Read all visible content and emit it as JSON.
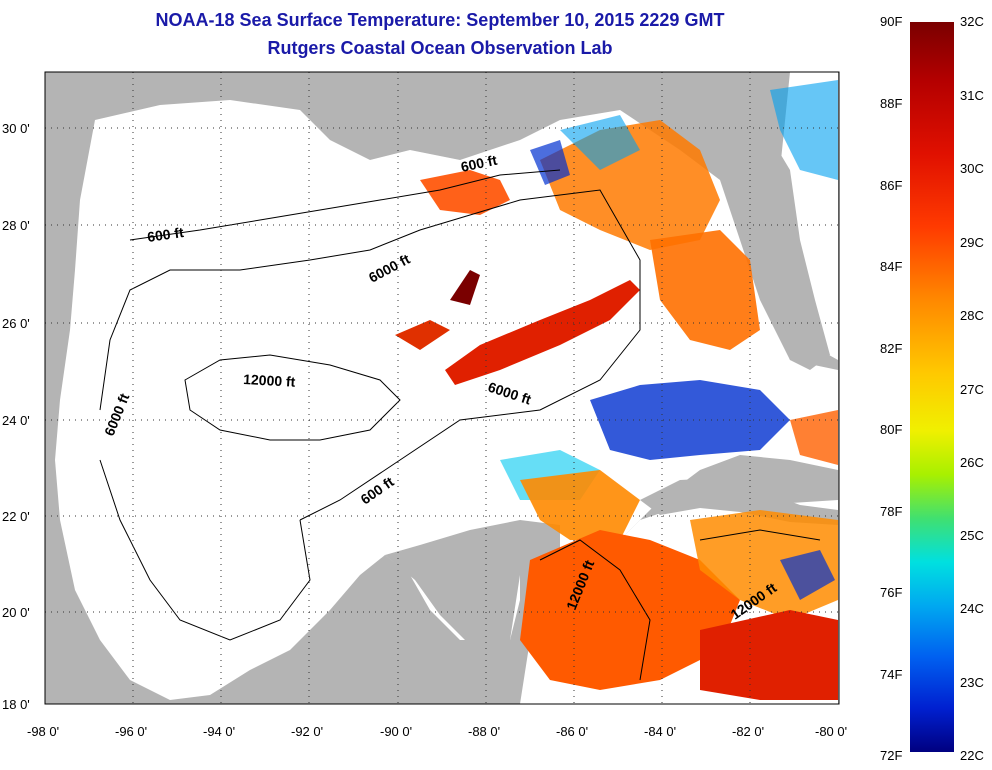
{
  "title": {
    "line1": "NOAA-18 Sea Surface Temperature:  September 10, 2015 2229 GMT",
    "line2": "Rutgers Coastal Ocean Observation Lab"
  },
  "axes": {
    "lon_labels": [
      "-98 0'",
      "-96 0'",
      "-94 0'",
      "-92 0'",
      "-90 0'",
      "-88 0'",
      "-86 0'",
      "-84 0'",
      "-82 0'",
      "-80 0'"
    ],
    "lat_labels": [
      "30 0'",
      "28 0'",
      "26 0'",
      "24 0'",
      "22 0'",
      "20 0'",
      "18 0'"
    ],
    "lon_range": [
      -98,
      -80
    ],
    "lat_range": [
      18,
      31
    ]
  },
  "contour_labels": [
    {
      "text": "600 ft"
    },
    {
      "text": "600 ft"
    },
    {
      "text": "6000 ft"
    },
    {
      "text": "6000 ft"
    },
    {
      "text": "6000 ft"
    },
    {
      "text": "12000 ft"
    },
    {
      "text": "600 ft"
    },
    {
      "text": "12000 ft"
    },
    {
      "text": "12000 ft"
    }
  ],
  "colorbar": {
    "fahrenheit": [
      "90F",
      "88F",
      "86F",
      "84F",
      "82F",
      "80F",
      "78F",
      "76F",
      "74F",
      "72F"
    ],
    "celsius": [
      "32C",
      "31C",
      "30C",
      "29C",
      "28C",
      "27C",
      "26C",
      "25C",
      "24C",
      "23C",
      "22C"
    ]
  },
  "colors": {
    "land": "#b4b4b4",
    "title": "#1a1aa8",
    "hot": "#e02000",
    "warm": "#ff8c00",
    "cool": "#0030d0"
  }
}
